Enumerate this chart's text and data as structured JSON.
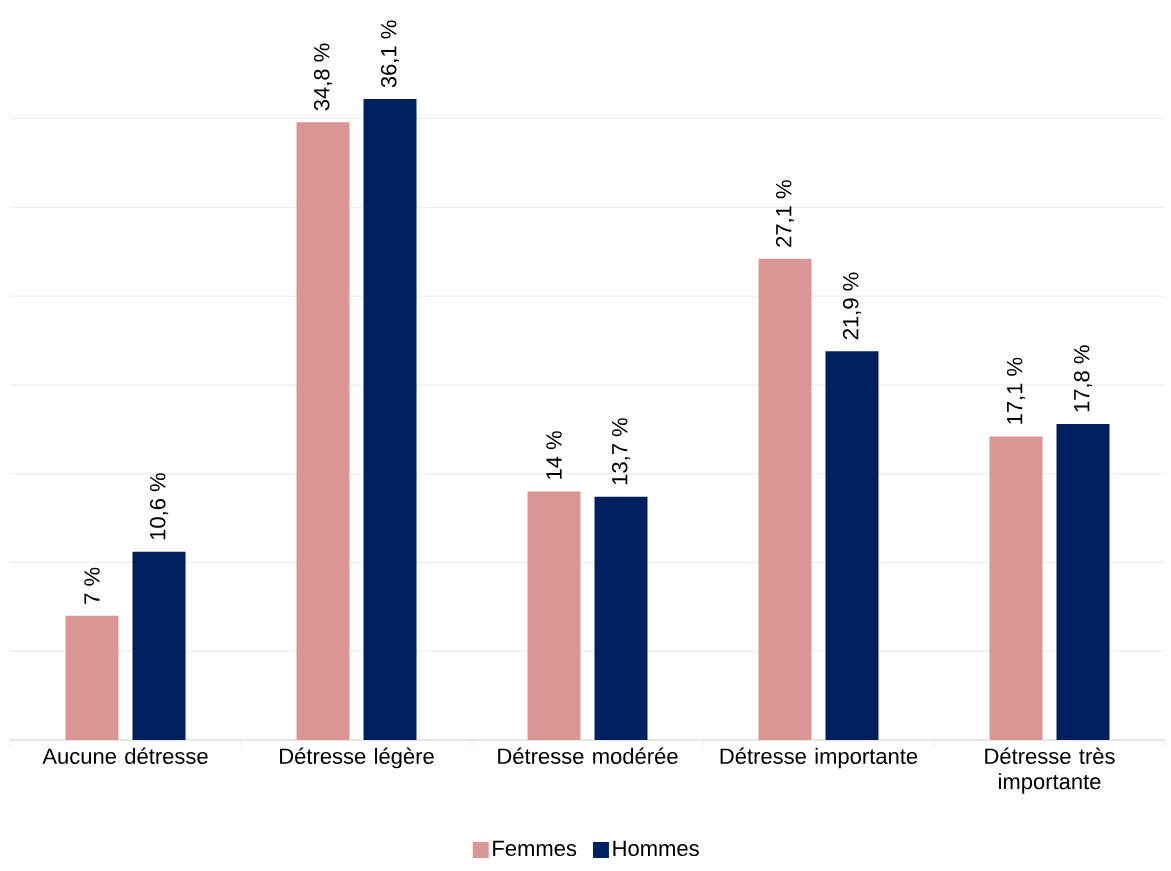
{
  "chart_data": {
    "type": "bar",
    "categories": [
      "Aucune détresse",
      "Détresse légère",
      "Détresse modérée",
      "Détresse importante",
      "Détresse très importante"
    ],
    "series": [
      {
        "name": "Femmes",
        "color": "#d99694",
        "values": [
          7,
          34.8,
          14,
          27.1,
          17.1
        ],
        "value_labels": [
          "7 %",
          "34,8 %",
          "14 %",
          "27,1 %",
          "17,1 %"
        ]
      },
      {
        "name": "Hommes",
        "color": "#002060",
        "values": [
          10.6,
          36.1,
          13.7,
          21.9,
          17.8
        ],
        "value_labels": [
          "10,6 %",
          "36,1 %",
          "13,7 %",
          "21,9 %",
          "17,8 %"
        ]
      }
    ],
    "grid": "y",
    "legend": "bottom",
    "tick_labels": "x"
  }
}
